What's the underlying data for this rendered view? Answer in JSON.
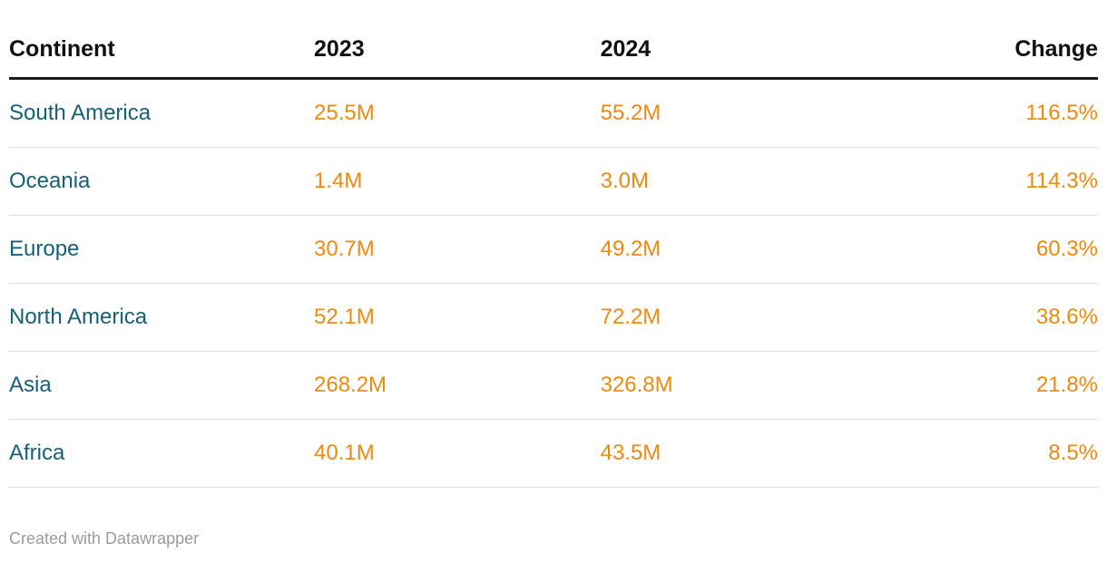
{
  "colors": {
    "continent": "#15607a",
    "value": "#ee8a0e",
    "header": "#111111",
    "footer": "#9b9b9b",
    "header_rule": "#1a1a1a",
    "row_rule": "#e0e0e0"
  },
  "table": {
    "columns": [
      "Continent",
      "2023",
      "2024",
      "Change"
    ],
    "rows": [
      {
        "continent": "South America",
        "y2023": "25.5M",
        "y2024": "55.2M",
        "change": "116.5%"
      },
      {
        "continent": "Oceania",
        "y2023": "1.4M",
        "y2024": "3.0M",
        "change": "114.3%"
      },
      {
        "continent": "Europe",
        "y2023": "30.7M",
        "y2024": "49.2M",
        "change": "60.3%"
      },
      {
        "continent": "North America",
        "y2023": "52.1M",
        "y2024": "72.2M",
        "change": "38.6%"
      },
      {
        "continent": "Asia",
        "y2023": "268.2M",
        "y2024": "326.8M",
        "change": "21.8%"
      },
      {
        "continent": "Africa",
        "y2023": "40.1M",
        "y2024": "43.5M",
        "change": "8.5%"
      }
    ]
  },
  "footer": {
    "credit": "Created with Datawrapper"
  },
  "chart_data": {
    "type": "table",
    "title": "",
    "columns": [
      "Continent",
      "2023",
      "2024",
      "Change"
    ],
    "rows": [
      [
        "South America",
        "25.5M",
        "55.2M",
        "116.5%"
      ],
      [
        "Oceania",
        "1.4M",
        "3.0M",
        "114.3%"
      ],
      [
        "Europe",
        "30.7M",
        "49.2M",
        "60.3%"
      ],
      [
        "North America",
        "52.1M",
        "72.2M",
        "38.6%"
      ],
      [
        "Asia",
        "268.2M",
        "326.8M",
        "21.8%"
      ],
      [
        "Africa",
        "40.1M",
        "43.5M",
        "8.5%"
      ]
    ],
    "values_numeric": {
      "categories": [
        "South America",
        "Oceania",
        "Europe",
        "North America",
        "Asia",
        "Africa"
      ],
      "series": [
        {
          "name": "2023 (millions)",
          "values": [
            25.5,
            1.4,
            30.7,
            52.1,
            268.2,
            40.1
          ]
        },
        {
          "name": "2024 (millions)",
          "values": [
            55.2,
            3.0,
            49.2,
            72.2,
            326.8,
            43.5
          ]
        },
        {
          "name": "Change (percent)",
          "values": [
            116.5,
            114.3,
            60.3,
            38.6,
            21.8,
            8.5
          ]
        }
      ]
    },
    "layout": {
      "value_alignment": "left",
      "change_alignment": "right",
      "grid": "horizontal-rules"
    }
  }
}
